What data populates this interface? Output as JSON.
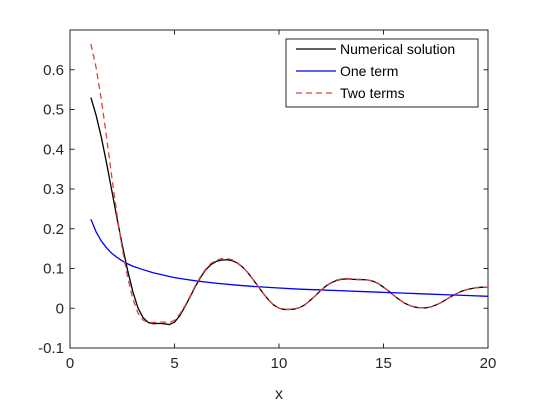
{
  "chart_data": {
    "type": "line",
    "title": "",
    "xlabel": "x",
    "ylabel": "",
    "xlim": [
      0,
      20
    ],
    "ylim": [
      -0.1,
      0.7
    ],
    "xticks": [
      0,
      5,
      10,
      15,
      20
    ],
    "xtick_labels": [
      "0",
      "5",
      "10",
      "15",
      "20"
    ],
    "yticks": [
      -0.1,
      0,
      0.1,
      0.2,
      0.3,
      0.4,
      0.5,
      0.6
    ],
    "ytick_labels": [
      "-0.1",
      "0",
      "0.1",
      "0.2",
      "0.3",
      "0.4",
      "0.5",
      "0.6"
    ],
    "grid": false,
    "legend_position": "top-right",
    "series": [
      {
        "name": "Numerical solution",
        "color": "#000000",
        "dash": "solid",
        "x": [
          1,
          1.25,
          1.5,
          1.75,
          2,
          2.25,
          2.5,
          2.75,
          3,
          3.25,
          3.5,
          3.75,
          4,
          4.25,
          4.5,
          4.75,
          5,
          5.25,
          5.5,
          5.75,
          6,
          6.25,
          6.5,
          6.75,
          7,
          7.25,
          7.5,
          7.75,
          8,
          8.25,
          8.5,
          8.75,
          9,
          9.25,
          9.5,
          9.75,
          10,
          10.25,
          10.5,
          10.75,
          11,
          11.25,
          11.5,
          11.75,
          12,
          12.25,
          12.5,
          12.75,
          13,
          13.25,
          13.5,
          13.75,
          14,
          14.25,
          14.5,
          14.75,
          15,
          15.25,
          15.5,
          15.75,
          16,
          16.25,
          16.5,
          16.75,
          17,
          17.25,
          17.5,
          17.75,
          18,
          18.25,
          18.5,
          18.75,
          19,
          19.25,
          19.5,
          19.75,
          20
        ],
        "y": [
          0.53,
          0.485,
          0.43,
          0.365,
          0.296,
          0.226,
          0.159,
          0.097,
          0.043,
          0.001,
          -0.024,
          -0.036,
          -0.039,
          -0.038,
          -0.039,
          -0.041,
          -0.035,
          -0.019,
          0.004,
          0.029,
          0.055,
          0.078,
          0.097,
          0.11,
          0.118,
          0.121,
          0.122,
          0.12,
          0.114,
          0.104,
          0.09,
          0.073,
          0.055,
          0.037,
          0.021,
          0.008,
          0.0,
          -0.003,
          -0.003,
          -0.002,
          0.002,
          0.009,
          0.02,
          0.032,
          0.045,
          0.056,
          0.064,
          0.07,
          0.073,
          0.074,
          0.073,
          0.072,
          0.072,
          0.071,
          0.068,
          0.062,
          0.053,
          0.043,
          0.032,
          0.022,
          0.013,
          0.007,
          0.003,
          0.001,
          0.001,
          0.003,
          0.008,
          0.014,
          0.022,
          0.03,
          0.037,
          0.043,
          0.047,
          0.05,
          0.052,
          0.053,
          0.053
        ]
      },
      {
        "name": "One term",
        "color": "#0000ff",
        "dash": "solid",
        "x": [
          1,
          1.25,
          1.5,
          1.75,
          2,
          2.25,
          2.5,
          2.75,
          3,
          3.5,
          4,
          4.5,
          5,
          5.5,
          6,
          7,
          8,
          9,
          10,
          11,
          12,
          13,
          14,
          15,
          16,
          17,
          18,
          19,
          20
        ],
        "y": [
          0.224,
          0.192,
          0.169,
          0.152,
          0.138,
          0.128,
          0.119,
          0.112,
          0.106,
          0.097,
          0.089,
          0.083,
          0.077,
          0.073,
          0.069,
          0.063,
          0.058,
          0.054,
          0.051,
          0.048,
          0.046,
          0.044,
          0.042,
          0.04,
          0.038,
          0.036,
          0.034,
          0.032,
          0.03
        ]
      },
      {
        "name": "Two terms",
        "color": "#e04040",
        "dash": "dashed",
        "x": [
          1,
          1.25,
          1.5,
          1.75,
          2,
          2.25,
          2.5,
          2.75,
          3,
          3.25,
          3.5,
          3.75,
          4,
          4.25,
          4.5,
          4.75,
          5,
          5.25,
          5.5,
          5.75,
          6,
          6.25,
          6.5,
          6.75,
          7,
          7.25,
          7.5,
          7.75,
          8,
          8.25,
          8.5,
          8.75,
          9,
          9.25,
          9.5,
          9.75,
          10,
          10.25,
          10.5,
          10.75,
          11,
          11.25,
          11.5,
          11.75,
          12,
          12.25,
          12.5,
          12.75,
          13,
          13.25,
          13.5,
          13.75,
          14,
          14.25,
          14.5,
          14.75,
          15,
          15.25,
          15.5,
          15.75,
          16,
          16.25,
          16.5,
          16.75,
          17,
          17.25,
          17.5,
          17.75,
          18,
          18.25,
          18.5,
          18.75,
          19,
          19.25,
          19.5,
          19.75,
          20
        ],
        "y": [
          0.665,
          0.605,
          0.525,
          0.43,
          0.33,
          0.235,
          0.15,
          0.08,
          0.025,
          -0.012,
          -0.03,
          -0.036,
          -0.036,
          -0.035,
          -0.035,
          -0.036,
          -0.03,
          -0.015,
          0.006,
          0.031,
          0.057,
          0.08,
          0.099,
          0.113,
          0.121,
          0.125,
          0.125,
          0.122,
          0.115,
          0.104,
          0.09,
          0.073,
          0.055,
          0.037,
          0.021,
          0.008,
          0.0,
          -0.003,
          -0.003,
          -0.002,
          0.002,
          0.009,
          0.02,
          0.032,
          0.045,
          0.056,
          0.065,
          0.071,
          0.074,
          0.075,
          0.074,
          0.073,
          0.073,
          0.071,
          0.068,
          0.062,
          0.053,
          0.043,
          0.032,
          0.022,
          0.013,
          0.007,
          0.003,
          0.001,
          0.001,
          0.003,
          0.008,
          0.014,
          0.022,
          0.03,
          0.037,
          0.043,
          0.047,
          0.05,
          0.052,
          0.053,
          0.053
        ]
      }
    ]
  }
}
